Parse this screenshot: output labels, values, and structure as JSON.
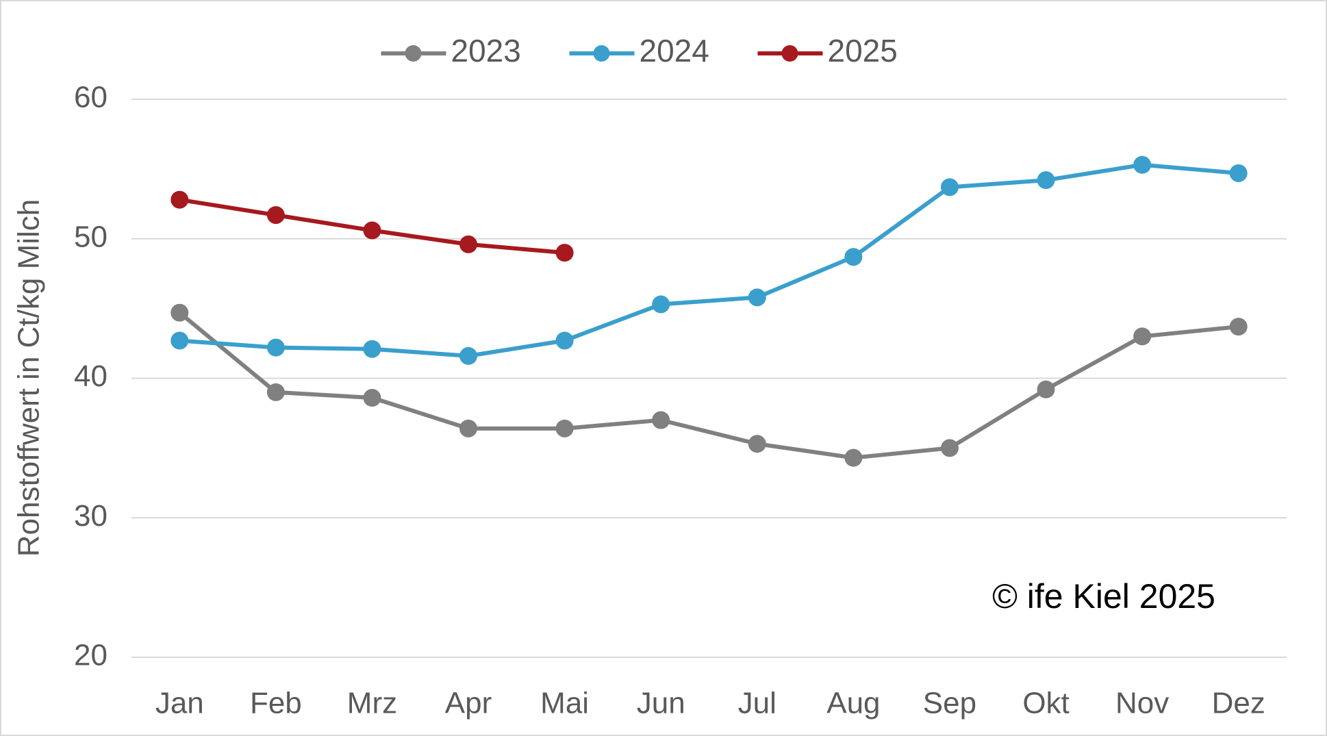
{
  "chart_data": {
    "type": "line",
    "y_label": "Rohstoffwert in Ct/kg Milch",
    "annotation": "© ife Kiel 2025",
    "categories": [
      "Jan",
      "Feb",
      "Mrz",
      "Apr",
      "Mai",
      "Jun",
      "Jul",
      "Aug",
      "Sep",
      "Okt",
      "Nov",
      "Dez"
    ],
    "series": [
      {
        "name": "2023",
        "color": "#808080",
        "values": [
          44.7,
          39.0,
          38.6,
          36.4,
          36.4,
          37.0,
          35.3,
          34.3,
          35.0,
          39.2,
          43.0,
          43.7
        ]
      },
      {
        "name": "2024",
        "color": "#3a9fcd",
        "values": [
          42.7,
          42.2,
          42.1,
          41.6,
          42.7,
          45.3,
          45.8,
          48.7,
          53.7,
          54.2,
          55.3,
          54.7
        ]
      },
      {
        "name": "2025",
        "color": "#a6191f",
        "values": [
          52.8,
          51.7,
          50.6,
          49.6,
          49.0,
          null,
          null,
          null,
          null,
          null,
          null,
          null
        ]
      }
    ],
    "ylim": [
      20,
      60
    ],
    "yticks": [
      20,
      30,
      40,
      50,
      60
    ],
    "grid": true,
    "legend": "top"
  }
}
